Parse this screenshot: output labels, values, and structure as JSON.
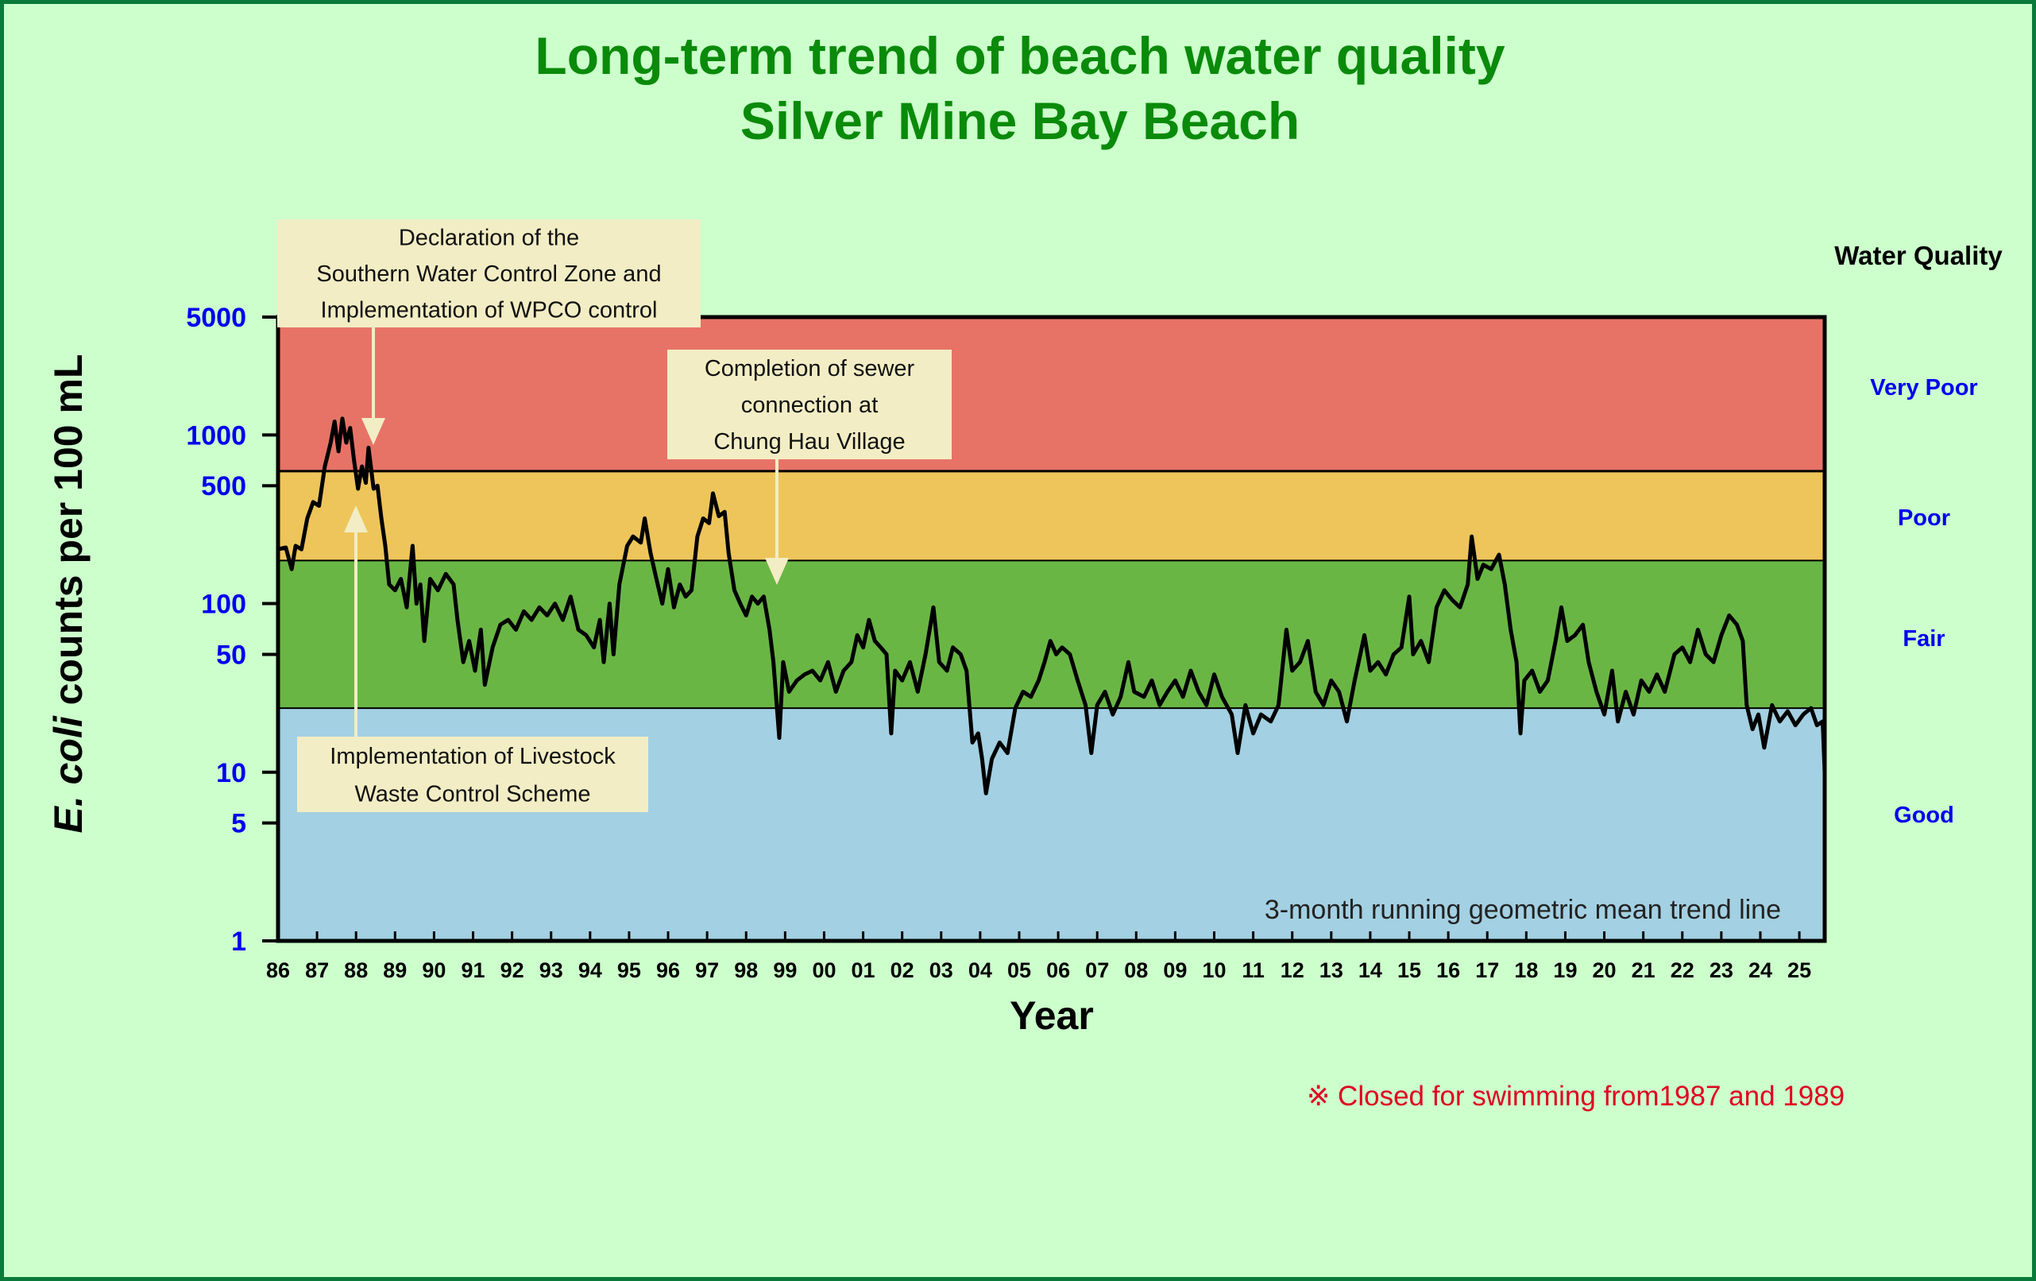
{
  "chart_data": {
    "type": "line",
    "title": "Long-term trend of beach water quality",
    "subtitle": "Silver Mine Bay Beach",
    "xlabel": "Year",
    "ylabel_italic": "E. coli",
    "ylabel_rest": " counts per 100 mL",
    "yscale": "log",
    "ylim": [
      1,
      5000
    ],
    "xlim": [
      1986,
      2025.65
    ],
    "yticks": [
      {
        "value": 1,
        "label": "1"
      },
      {
        "value": 5,
        "label": "5"
      },
      {
        "value": 10,
        "label": "10"
      },
      {
        "value": 50,
        "label": "50"
      },
      {
        "value": 100,
        "label": "100"
      },
      {
        "value": 500,
        "label": "500"
      },
      {
        "value": 1000,
        "label": "1000"
      },
      {
        "value": 5000,
        "label": "5000"
      }
    ],
    "xticks": [
      "86",
      "87",
      "88",
      "89",
      "90",
      "91",
      "92",
      "93",
      "94",
      "95",
      "96",
      "97",
      "98",
      "99",
      "00",
      "01",
      "02",
      "03",
      "04",
      "05",
      "06",
      "07",
      "08",
      "09",
      "10",
      "11",
      "12",
      "13",
      "14",
      "15",
      "16",
      "17",
      "18",
      "19",
      "20",
      "21",
      "22",
      "23",
      "24",
      "25"
    ],
    "grid": false,
    "bands": [
      {
        "label": "Good",
        "from": 1,
        "to": 24,
        "color": "#a3d0e2"
      },
      {
        "label": "Fair",
        "from": 24,
        "to": 180,
        "color": "#6ab645"
      },
      {
        "label": "Poor",
        "from": 180,
        "to": 610,
        "color": "#eec55a"
      },
      {
        "label": "Very Poor",
        "from": 610,
        "to": 5000,
        "color": "#e77367"
      }
    ],
    "band_legend_title": "Water Quality",
    "series": [
      {
        "name": "3-month running geometric mean trend line",
        "color": "#000000",
        "points": [
          [
            1986.0,
            210
          ],
          [
            1986.2,
            215
          ],
          [
            1986.35,
            160
          ],
          [
            1986.45,
            220
          ],
          [
            1986.6,
            210
          ],
          [
            1986.75,
            320
          ],
          [
            1986.9,
            400
          ],
          [
            1987.05,
            380
          ],
          [
            1987.2,
            650
          ],
          [
            1987.35,
            900
          ],
          [
            1987.45,
            1200
          ],
          [
            1987.55,
            800
          ],
          [
            1987.65,
            1250
          ],
          [
            1987.75,
            900
          ],
          [
            1987.85,
            1100
          ],
          [
            1987.95,
            700
          ],
          [
            1988.05,
            480
          ],
          [
            1988.15,
            650
          ],
          [
            1988.25,
            520
          ],
          [
            1988.32,
            840
          ],
          [
            1988.45,
            480
          ],
          [
            1988.55,
            500
          ],
          [
            1988.65,
            320
          ],
          [
            1988.75,
            220
          ],
          [
            1988.85,
            130
          ],
          [
            1989.0,
            120
          ],
          [
            1989.15,
            140
          ],
          [
            1989.3,
            95
          ],
          [
            1989.45,
            220
          ],
          [
            1989.55,
            100
          ],
          [
            1989.65,
            130
          ],
          [
            1989.75,
            60
          ],
          [
            1989.9,
            140
          ],
          [
            1990.1,
            120
          ],
          [
            1990.3,
            150
          ],
          [
            1990.5,
            130
          ],
          [
            1990.6,
            80
          ],
          [
            1990.75,
            45
          ],
          [
            1990.9,
            60
          ],
          [
            1991.05,
            40
          ],
          [
            1991.2,
            70
          ],
          [
            1991.3,
            33
          ],
          [
            1991.5,
            55
          ],
          [
            1991.7,
            75
          ],
          [
            1991.9,
            80
          ],
          [
            1992.1,
            70
          ],
          [
            1992.3,
            90
          ],
          [
            1992.5,
            80
          ],
          [
            1992.7,
            95
          ],
          [
            1992.9,
            85
          ],
          [
            1993.1,
            100
          ],
          [
            1993.3,
            80
          ],
          [
            1993.5,
            110
          ],
          [
            1993.7,
            70
          ],
          [
            1993.9,
            65
          ],
          [
            1994.1,
            55
          ],
          [
            1994.25,
            80
          ],
          [
            1994.35,
            45
          ],
          [
            1994.5,
            100
          ],
          [
            1994.6,
            50
          ],
          [
            1994.75,
            130
          ],
          [
            1994.95,
            220
          ],
          [
            1995.1,
            250
          ],
          [
            1995.3,
            230
          ],
          [
            1995.4,
            320
          ],
          [
            1995.55,
            200
          ],
          [
            1995.7,
            140
          ],
          [
            1995.85,
            100
          ],
          [
            1996.0,
            160
          ],
          [
            1996.15,
            95
          ],
          [
            1996.3,
            130
          ],
          [
            1996.45,
            110
          ],
          [
            1996.6,
            120
          ],
          [
            1996.75,
            250
          ],
          [
            1996.9,
            320
          ],
          [
            1997.05,
            300
          ],
          [
            1997.15,
            450
          ],
          [
            1997.3,
            330
          ],
          [
            1997.45,
            350
          ],
          [
            1997.55,
            200
          ],
          [
            1997.7,
            120
          ],
          [
            1997.85,
            100
          ],
          [
            1998.0,
            85
          ],
          [
            1998.15,
            110
          ],
          [
            1998.3,
            100
          ],
          [
            1998.45,
            110
          ],
          [
            1998.6,
            70
          ],
          [
            1998.7,
            45
          ],
          [
            1998.85,
            16
          ],
          [
            1998.95,
            45
          ],
          [
            1999.1,
            30
          ],
          [
            1999.3,
            35
          ],
          [
            1999.5,
            38
          ],
          [
            1999.7,
            40
          ],
          [
            1999.9,
            35
          ],
          [
            2000.1,
            45
          ],
          [
            2000.3,
            30
          ],
          [
            2000.5,
            40
          ],
          [
            2000.7,
            45
          ],
          [
            2000.85,
            65
          ],
          [
            2001.0,
            55
          ],
          [
            2001.15,
            80
          ],
          [
            2001.3,
            60
          ],
          [
            2001.45,
            55
          ],
          [
            2001.6,
            50
          ],
          [
            2001.72,
            17
          ],
          [
            2001.82,
            40
          ],
          [
            2002.0,
            35
          ],
          [
            2002.2,
            45
          ],
          [
            2002.4,
            30
          ],
          [
            2002.6,
            50
          ],
          [
            2002.8,
            95
          ],
          [
            2002.95,
            45
          ],
          [
            2003.15,
            40
          ],
          [
            2003.3,
            55
          ],
          [
            2003.5,
            50
          ],
          [
            2003.65,
            40
          ],
          [
            2003.8,
            15
          ],
          [
            2003.95,
            17
          ],
          [
            2004.05,
            12
          ],
          [
            2004.15,
            7.5
          ],
          [
            2004.3,
            12
          ],
          [
            2004.5,
            15
          ],
          [
            2004.7,
            13
          ],
          [
            2004.9,
            24
          ],
          [
            2005.1,
            30
          ],
          [
            2005.3,
            28
          ],
          [
            2005.5,
            35
          ],
          [
            2005.65,
            45
          ],
          [
            2005.8,
            60
          ],
          [
            2005.95,
            50
          ],
          [
            2006.1,
            55
          ],
          [
            2006.3,
            50
          ],
          [
            2006.5,
            35
          ],
          [
            2006.7,
            25
          ],
          [
            2006.85,
            13
          ],
          [
            2007.0,
            25
          ],
          [
            2007.2,
            30
          ],
          [
            2007.4,
            22
          ],
          [
            2007.6,
            28
          ],
          [
            2007.8,
            45
          ],
          [
            2007.95,
            30
          ],
          [
            2008.2,
            28
          ],
          [
            2008.4,
            35
          ],
          [
            2008.6,
            25
          ],
          [
            2008.8,
            30
          ],
          [
            2009.0,
            35
          ],
          [
            2009.2,
            28
          ],
          [
            2009.4,
            40
          ],
          [
            2009.6,
            30
          ],
          [
            2009.8,
            25
          ],
          [
            2010.0,
            38
          ],
          [
            2010.2,
            28
          ],
          [
            2010.45,
            22
          ],
          [
            2010.6,
            13
          ],
          [
            2010.8,
            25
          ],
          [
            2011.0,
            17
          ],
          [
            2011.2,
            22
          ],
          [
            2011.45,
            20
          ],
          [
            2011.65,
            25
          ],
          [
            2011.85,
            70
          ],
          [
            2012.0,
            40
          ],
          [
            2012.2,
            45
          ],
          [
            2012.4,
            60
          ],
          [
            2012.6,
            30
          ],
          [
            2012.8,
            25
          ],
          [
            2013.0,
            35
          ],
          [
            2013.2,
            30
          ],
          [
            2013.4,
            20
          ],
          [
            2013.6,
            35
          ],
          [
            2013.85,
            65
          ],
          [
            2014.0,
            40
          ],
          [
            2014.2,
            45
          ],
          [
            2014.4,
            38
          ],
          [
            2014.6,
            50
          ],
          [
            2014.8,
            55
          ],
          [
            2015.0,
            110
          ],
          [
            2015.1,
            50
          ],
          [
            2015.3,
            60
          ],
          [
            2015.5,
            45
          ],
          [
            2015.7,
            95
          ],
          [
            2015.9,
            120
          ],
          [
            2016.1,
            105
          ],
          [
            2016.3,
            95
          ],
          [
            2016.5,
            130
          ],
          [
            2016.6,
            250
          ],
          [
            2016.75,
            140
          ],
          [
            2016.9,
            170
          ],
          [
            2017.1,
            160
          ],
          [
            2017.3,
            195
          ],
          [
            2017.45,
            130
          ],
          [
            2017.6,
            70
          ],
          [
            2017.75,
            45
          ],
          [
            2017.85,
            17
          ],
          [
            2017.95,
            35
          ],
          [
            2018.15,
            40
          ],
          [
            2018.35,
            30
          ],
          [
            2018.55,
            35
          ],
          [
            2018.75,
            60
          ],
          [
            2018.9,
            95
          ],
          [
            2019.05,
            60
          ],
          [
            2019.25,
            65
          ],
          [
            2019.45,
            75
          ],
          [
            2019.6,
            45
          ],
          [
            2019.8,
            30
          ],
          [
            2020.0,
            22
          ],
          [
            2020.2,
            40
          ],
          [
            2020.35,
            20
          ],
          [
            2020.55,
            30
          ],
          [
            2020.75,
            22
          ],
          [
            2020.95,
            35
          ],
          [
            2021.15,
            30
          ],
          [
            2021.35,
            38
          ],
          [
            2021.55,
            30
          ],
          [
            2021.8,
            50
          ],
          [
            2022.0,
            55
          ],
          [
            2022.2,
            45
          ],
          [
            2022.4,
            70
          ],
          [
            2022.6,
            50
          ],
          [
            2022.8,
            45
          ],
          [
            2023.0,
            65
          ],
          [
            2023.2,
            85
          ],
          [
            2023.4,
            75
          ],
          [
            2023.55,
            60
          ],
          [
            2023.65,
            25
          ],
          [
            2023.8,
            18
          ],
          [
            2023.95,
            22
          ],
          [
            2024.1,
            14
          ],
          [
            2024.3,
            25
          ],
          [
            2024.5,
            20
          ],
          [
            2024.7,
            23
          ],
          [
            2024.9,
            19
          ],
          [
            2025.1,
            22
          ],
          [
            2025.3,
            24
          ],
          [
            2025.45,
            19
          ],
          [
            2025.6,
            20
          ],
          [
            2025.65,
            10
          ]
        ]
      }
    ],
    "annotations": [
      {
        "lines": [
          "Declaration of the",
          "Southern Water Control Zone and",
          "Implementation of WPCO control"
        ],
        "x": 1988.4,
        "y": 830,
        "arrow": "down"
      },
      {
        "lines": [
          "Completion of sewer",
          "connection at",
          "Chung Hau Village"
        ],
        "x": 1998.75,
        "y": 125,
        "arrow": "down"
      },
      {
        "lines": [
          "Implementation of Livestock",
          "Waste Control Scheme"
        ],
        "x": 1988.0,
        "y": 350,
        "arrow": "up"
      }
    ],
    "trend_label": "3-month running geometric mean trend line",
    "footnote": "※ Closed for swimming from1987 and 1989"
  }
}
